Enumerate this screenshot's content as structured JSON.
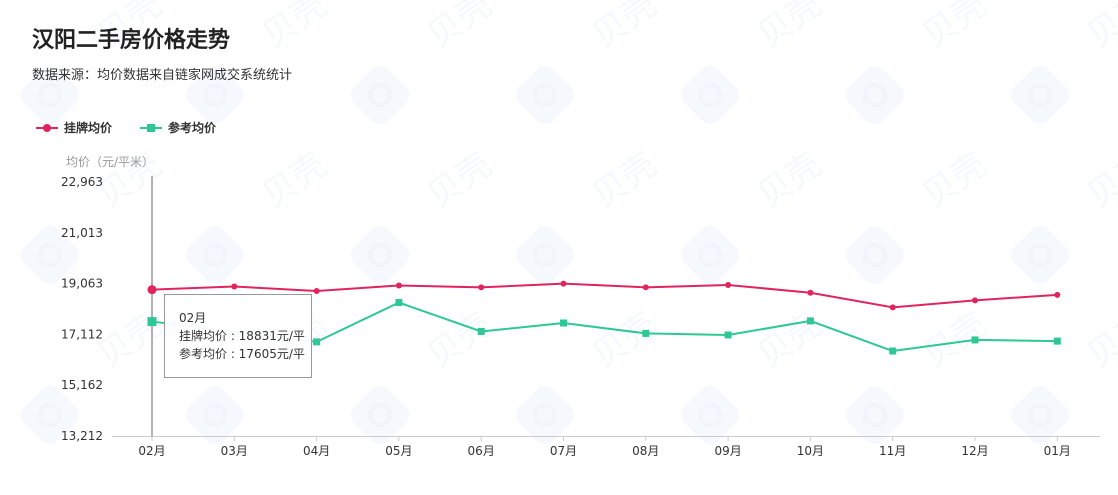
{
  "header": {
    "title": "汉阳二手房价格走势",
    "subtitle": "数据来源：均价数据来自链家网成交系统统计"
  },
  "watermark": {
    "text": "贝壳"
  },
  "legend": {
    "items": [
      {
        "label": "挂牌均价",
        "color": "#e0245e",
        "marker": "circle"
      },
      {
        "label": "参考均价",
        "color": "#2ec894",
        "marker": "square"
      }
    ]
  },
  "tooltip": {
    "month": "02月",
    "line1": "挂牌均价 : 18831元/平",
    "line2": "参考均价 : 17605元/平"
  },
  "chart_data": {
    "type": "line",
    "ylabel": "均价（元/平米）",
    "ylim": [
      13212,
      22963
    ],
    "yticks": [
      "22,963",
      "21,013",
      "19,063",
      "17,112",
      "15,162",
      "13,212"
    ],
    "categories": [
      "02月",
      "03月",
      "04月",
      "05月",
      "06月",
      "07月",
      "08月",
      "09月",
      "10月",
      "11月",
      "12月",
      "01月"
    ],
    "series": [
      {
        "name": "挂牌均价",
        "color": "#e0245e",
        "marker": "circle",
        "values": [
          18831,
          18950,
          18780,
          18990,
          18920,
          19060,
          18920,
          19010,
          18710,
          18150,
          18420,
          18630
        ]
      },
      {
        "name": "参考均价",
        "color": "#2ec894",
        "marker": "square",
        "values": [
          17605,
          null,
          16825,
          18335,
          17225,
          17550,
          17150,
          17090,
          17630,
          16475,
          16900,
          16855
        ]
      }
    ],
    "grid": false,
    "legend_position": "top-left",
    "highlight_index": 0
  }
}
